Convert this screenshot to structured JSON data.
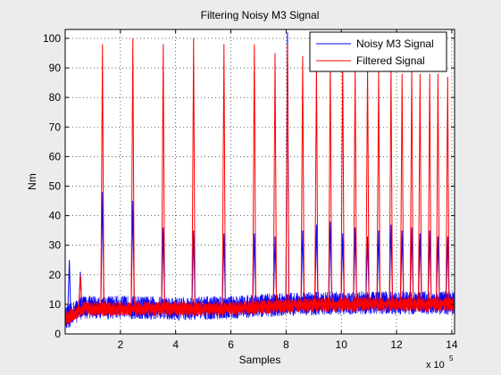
{
  "figure": {
    "background": "#ececec",
    "axes_background": "#ffffff"
  },
  "chart_data": {
    "type": "line",
    "title": "Filtering Noisy M3 Signal",
    "xlabel": "Samples",
    "ylabel": "Nm",
    "x_exponent_label": "x 10",
    "x_exponent": "5",
    "xlim": [
      0,
      14.1
    ],
    "ylim": [
      0,
      103
    ],
    "x_unit_multiplier": 100000,
    "xticks": [
      2,
      4,
      6,
      8,
      10,
      12,
      14
    ],
    "yticks": [
      0,
      10,
      20,
      30,
      40,
      50,
      60,
      70,
      80,
      90,
      100
    ],
    "grid": true,
    "legend_position": "top-right",
    "series": [
      {
        "name": "Noisy M3 Signal",
        "color": "#0000ff",
        "baseline": [
          [
            0,
            5
          ],
          [
            0.6,
            9
          ],
          [
            2.0,
            9
          ],
          [
            4.0,
            8.5
          ],
          [
            6.0,
            9
          ],
          [
            8.0,
            10
          ],
          [
            10.0,
            10.5
          ],
          [
            12.0,
            10.5
          ],
          [
            14.1,
            10.5
          ]
        ],
        "noise_band": 4,
        "spikes": [
          [
            0.15,
            25
          ],
          [
            0.55,
            21
          ],
          [
            1.35,
            48
          ],
          [
            2.45,
            45
          ],
          [
            3.55,
            36
          ],
          [
            4.65,
            35
          ],
          [
            5.75,
            34
          ],
          [
            6.85,
            34
          ],
          [
            7.6,
            33
          ],
          [
            8.05,
            102
          ],
          [
            8.6,
            35
          ],
          [
            9.1,
            37
          ],
          [
            9.6,
            38
          ],
          [
            10.05,
            34
          ],
          [
            10.5,
            36
          ],
          [
            10.95,
            33
          ],
          [
            11.35,
            35
          ],
          [
            11.8,
            37
          ],
          [
            12.2,
            35
          ],
          [
            12.55,
            36
          ],
          [
            12.85,
            34
          ],
          [
            13.2,
            35
          ],
          [
            13.5,
            33
          ],
          [
            13.85,
            33
          ]
        ]
      },
      {
        "name": "Filtered Signal",
        "color": "#ff0000",
        "baseline": [
          [
            0,
            5
          ],
          [
            0.6,
            8.5
          ],
          [
            2.0,
            8.5
          ],
          [
            4.0,
            8.5
          ],
          [
            6.0,
            8.5
          ],
          [
            8.0,
            9.5
          ],
          [
            10.0,
            10
          ],
          [
            12.0,
            10
          ],
          [
            14.1,
            10
          ]
        ],
        "noise_band": 2.5,
        "spikes": [
          [
            0.55,
            20
          ],
          [
            1.35,
            98
          ],
          [
            2.45,
            100
          ],
          [
            3.55,
            98
          ],
          [
            4.65,
            100
          ],
          [
            5.75,
            98
          ],
          [
            6.85,
            98
          ],
          [
            7.6,
            95
          ],
          [
            8.05,
            98
          ],
          [
            8.6,
            94
          ],
          [
            9.1,
            92
          ],
          [
            9.6,
            92
          ],
          [
            10.05,
            93
          ],
          [
            10.5,
            91
          ],
          [
            10.95,
            92
          ],
          [
            11.35,
            89
          ],
          [
            11.8,
            91
          ],
          [
            12.2,
            88
          ],
          [
            12.55,
            89
          ],
          [
            12.85,
            88
          ],
          [
            13.2,
            88
          ],
          [
            13.5,
            88
          ],
          [
            13.85,
            87
          ]
        ]
      }
    ]
  }
}
